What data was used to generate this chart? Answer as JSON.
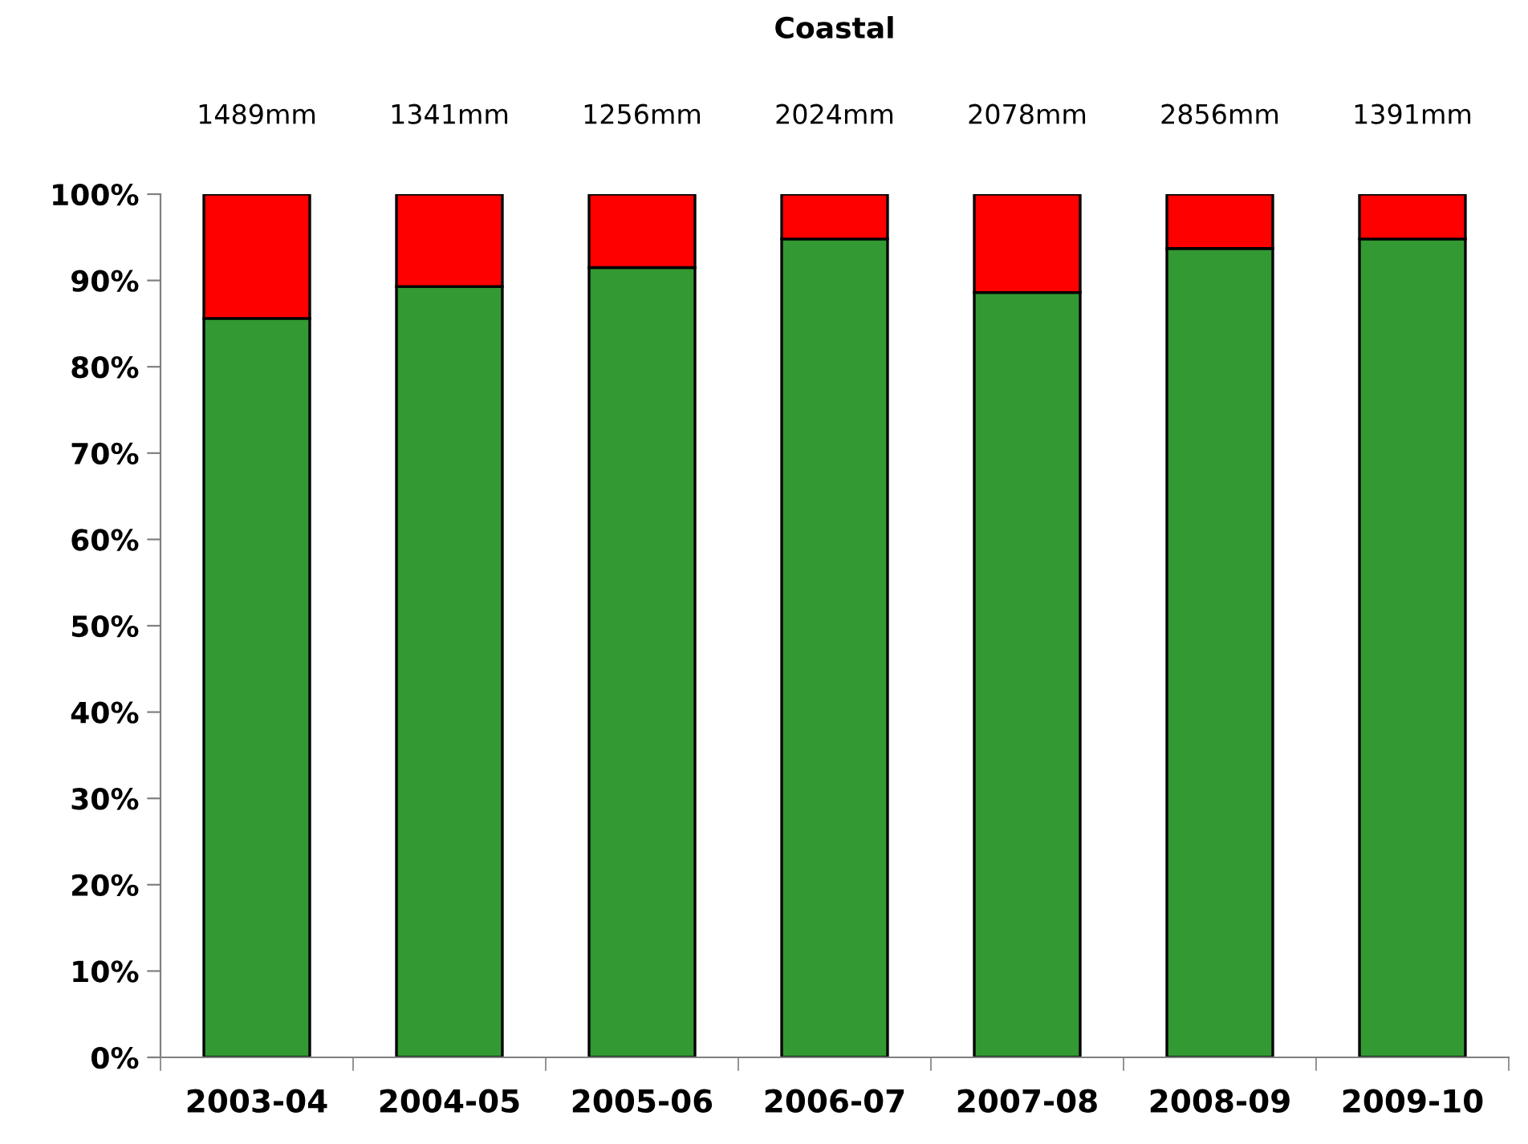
{
  "chart_data": {
    "type": "bar",
    "stacked": true,
    "title": "Coastal",
    "categories": [
      "2003-04",
      "2004-05",
      "2005-06",
      "2006-07",
      "2007-08",
      "2008-09",
      "2009-10"
    ],
    "series": [
      {
        "color": "#339933",
        "values": [
          85.6,
          89.3,
          91.5,
          94.8,
          88.6,
          93.7,
          94.8
        ]
      },
      {
        "color": "#ff0000",
        "values": [
          14.4,
          10.7,
          8.5,
          5.2,
          11.4,
          6.3,
          5.2
        ]
      }
    ],
    "annotations": [
      "1489mm",
      "1341mm",
      "1256mm",
      "2024mm",
      "2078mm",
      "2856mm",
      "1391mm"
    ],
    "ylim": [
      0,
      100
    ],
    "yticks": [
      {
        "value": 0,
        "label": "0%"
      },
      {
        "value": 10,
        "label": "10%"
      },
      {
        "value": 20,
        "label": "20%"
      },
      {
        "value": 30,
        "label": "30%"
      },
      {
        "value": 40,
        "label": "40%"
      },
      {
        "value": 50,
        "label": "50%"
      },
      {
        "value": 60,
        "label": "60%"
      },
      {
        "value": 70,
        "label": "70%"
      },
      {
        "value": 80,
        "label": "80%"
      },
      {
        "value": 90,
        "label": "90%"
      },
      {
        "value": 100,
        "label": "100%"
      }
    ],
    "grid": false
  }
}
